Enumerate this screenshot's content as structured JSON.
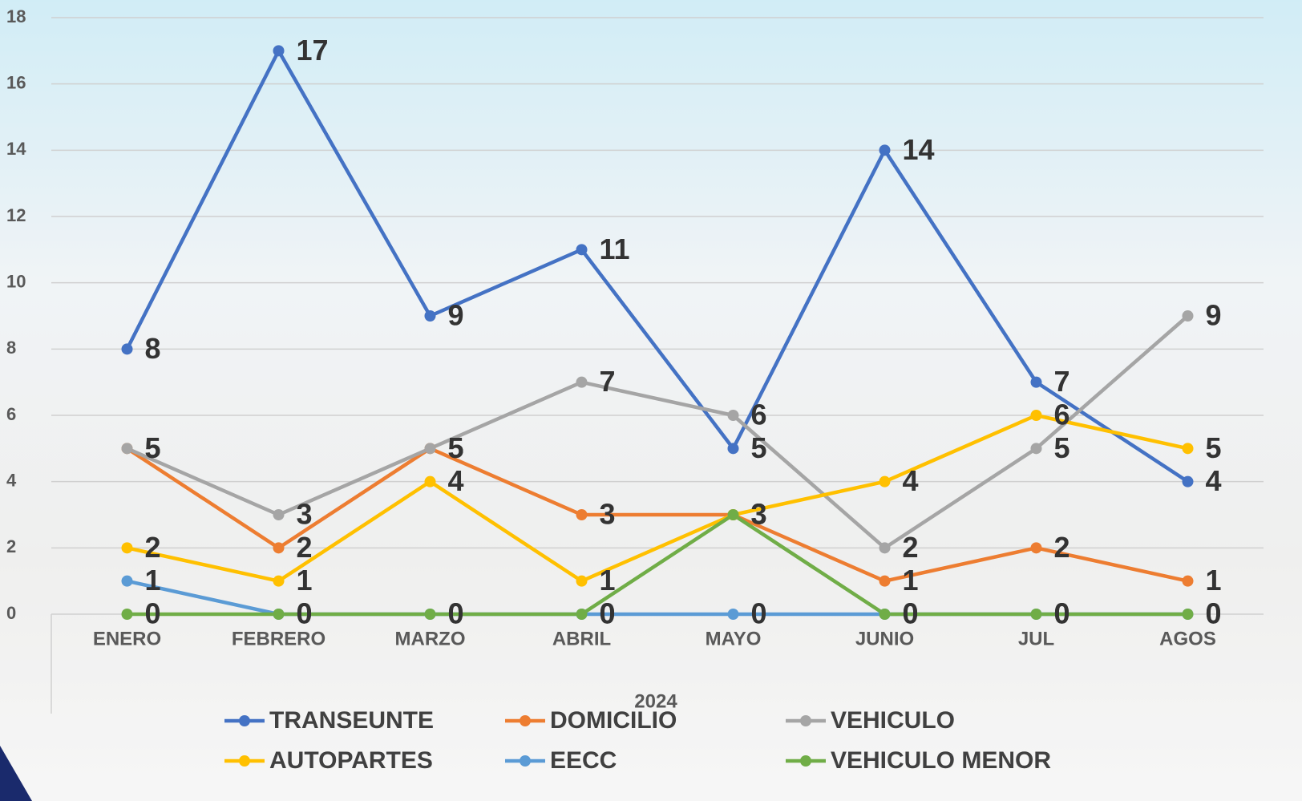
{
  "chart_data": {
    "type": "line",
    "x_label": "2024",
    "categories": [
      "ENERO",
      "FEBRERO",
      "MARZO",
      "ABRIL",
      "MAYO",
      "JUNIO",
      "JUL",
      "AGOS"
    ],
    "series": [
      {
        "name": "TRANSEUNTE",
        "color": "#4472c4",
        "values": [
          8,
          17,
          9,
          11,
          5,
          14,
          7,
          4
        ]
      },
      {
        "name": "DOMICILIO",
        "color": "#ed7d31",
        "values": [
          5,
          2,
          5,
          3,
          3,
          1,
          2,
          1
        ]
      },
      {
        "name": "VEHICULO",
        "color": "#a5a5a5",
        "values": [
          5,
          3,
          5,
          7,
          6,
          2,
          5,
          9
        ]
      },
      {
        "name": "AUTOPARTES",
        "color": "#ffc000",
        "values": [
          2,
          1,
          4,
          1,
          3,
          4,
          6,
          5
        ]
      },
      {
        "name": "EECC",
        "color": "#5b9bd5",
        "values": [
          1,
          0,
          0,
          0,
          0,
          0,
          0,
          0
        ]
      },
      {
        "name": "VEHICULO MENOR",
        "color": "#70ad47",
        "values": [
          0,
          0,
          0,
          0,
          3,
          0,
          0,
          0
        ]
      }
    ],
    "ylim": [
      0,
      18
    ],
    "yticks": [
      0,
      2,
      4,
      6,
      8,
      10,
      12,
      14,
      16,
      18
    ],
    "grid": true,
    "legend": "bottom",
    "data_labels": true
  }
}
